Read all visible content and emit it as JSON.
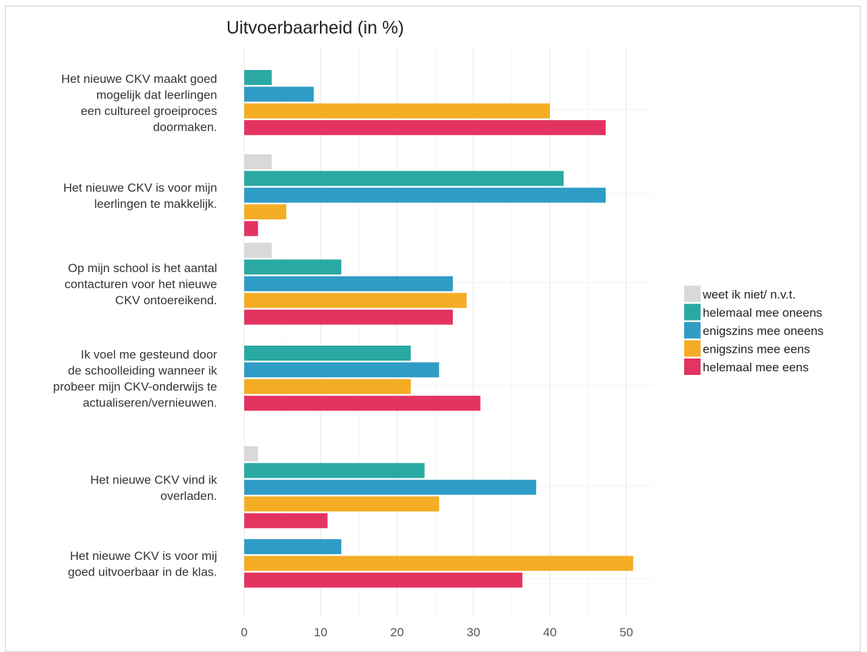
{
  "chart_data": {
    "type": "bar",
    "orientation": "horizontal",
    "title": "Uitvoerbaarheid (in %)",
    "xlabel": "",
    "ylabel": "",
    "xlim": [
      0,
      53
    ],
    "xticks": [
      0,
      10,
      20,
      30,
      40,
      50
    ],
    "grid": true,
    "legend_position": "right",
    "categories": [
      [
        "Het nieuwe CKV maakt goed",
        "mogelijk dat leerlingen",
        "een cultureel groeiproces",
        "doormaken."
      ],
      [
        "Het nieuwe CKV is voor mijn",
        "leerlingen te makkelijk."
      ],
      [
        "Op mijn school is het aantal",
        "contacturen voor het nieuwe",
        "CKV ontoereikend."
      ],
      [
        "Ik voel me gesteund door",
        "de schoolleiding wanneer ik",
        "probeer mijn CKV-onderwijs te",
        "actualiseren/vernieuwen."
      ],
      [
        "Het nieuwe CKV vind ik",
        "overladen."
      ],
      [
        "Het nieuwe CKV is voor mij",
        "goed uitvoerbaar in de klas."
      ]
    ],
    "series": [
      {
        "name": "weet ik niet/ n.v.t.",
        "color": "#d9d9d9",
        "values": [
          0,
          3.6,
          3.6,
          0,
          1.8,
          0
        ]
      },
      {
        "name": "helemaal mee oneens",
        "color": "#2aa9a3",
        "values": [
          3.6,
          41.8,
          12.7,
          21.8,
          23.6,
          0
        ]
      },
      {
        "name": "enigszins mee oneens",
        "color": "#2f9cc6",
        "values": [
          9.1,
          47.3,
          27.3,
          25.5,
          38.2,
          12.7
        ]
      },
      {
        "name": "enigszins mee eens",
        "color": "#f4ad25",
        "values": [
          40.0,
          5.5,
          29.1,
          21.8,
          25.5,
          50.9
        ]
      },
      {
        "name": "helemaal mee eens",
        "color": "#e33361",
        "values": [
          47.3,
          1.8,
          27.3,
          30.9,
          10.9,
          36.4
        ]
      }
    ]
  }
}
